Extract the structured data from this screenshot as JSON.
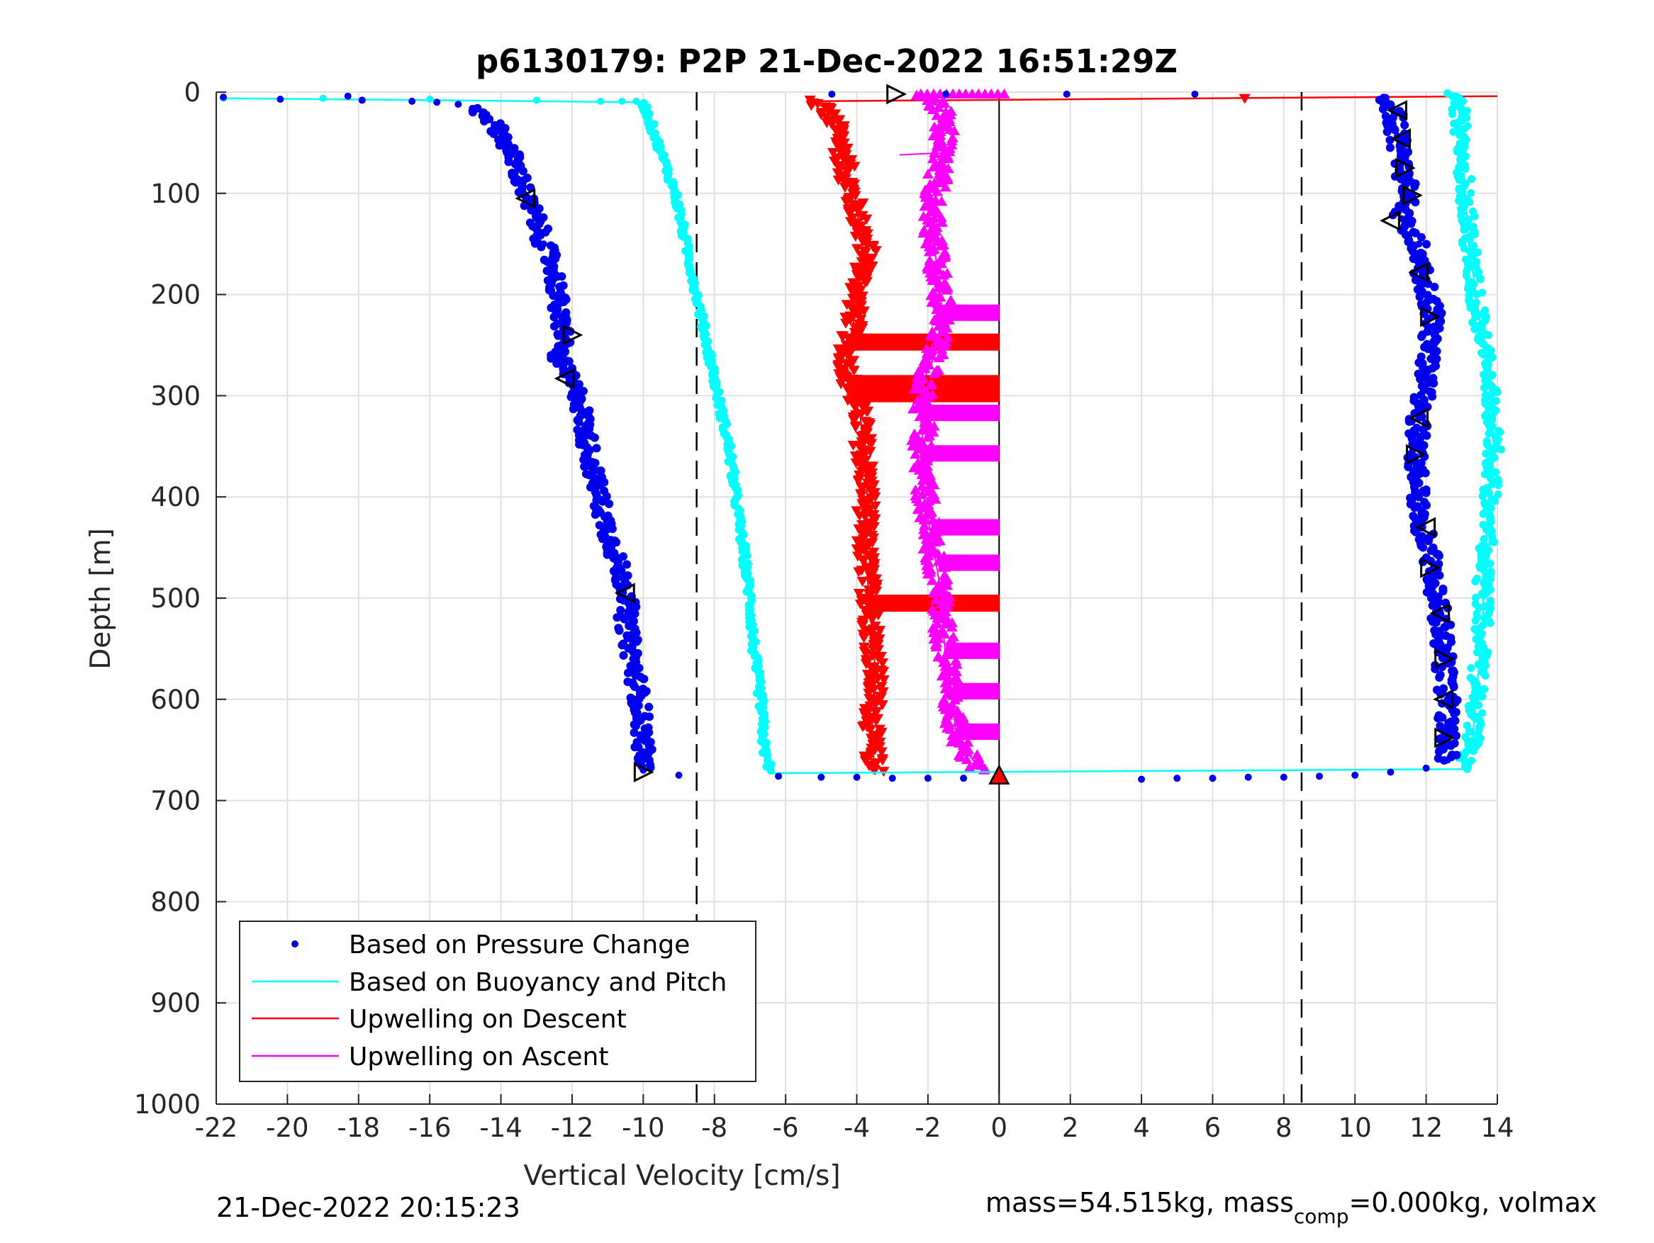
{
  "chart_data": {
    "type": "scatter",
    "title": "p6130179: P2P 21-Dec-2022 16:51:29Z",
    "xlabel": "Vertical Velocity [cm/s]",
    "ylabel": "Depth [m]",
    "xlim": [
      -22,
      14
    ],
    "ylim": [
      0,
      1000
    ],
    "y_reversed": true,
    "grid": true,
    "x_ticks": [
      -22,
      -20,
      -18,
      -16,
      -14,
      -12,
      -10,
      -8,
      -6,
      -4,
      -2,
      0,
      2,
      4,
      6,
      8,
      10,
      12,
      14
    ],
    "y_ticks": [
      0,
      100,
      200,
      300,
      400,
      500,
      600,
      700,
      800,
      900,
      1000
    ],
    "x_tick_labels": [
      "-22",
      "-20",
      "-18",
      "-16",
      "-14",
      "-12",
      "-10",
      "-8",
      "-6",
      "-4",
      "-2",
      "0",
      "2",
      "4",
      "6",
      "8",
      "10",
      "12",
      "14"
    ],
    "y_tick_labels": [
      "0",
      "100",
      "200",
      "300",
      "400",
      "500",
      "600",
      "700",
      "800",
      "900",
      "1000"
    ],
    "reference_lines": {
      "dashed_x": [
        -8.5,
        8.5
      ],
      "solid_x": [
        0
      ]
    },
    "legend": {
      "location": "bottom-left",
      "entries": [
        "Based on Pressure Change",
        "Based on Buoyancy and Pitch",
        "Upwelling on Descent",
        "Upwelling on Ascent"
      ]
    },
    "colors": {
      "pressure": "#0000ee",
      "buoyancy": "#00ffff",
      "descent": "#ff0000",
      "ascent": "#ff00ff",
      "grid": "#e0e0e0",
      "axis": "#262626"
    },
    "series": [
      {
        "name": "Based on Pressure Change",
        "marker": "dot",
        "descent_points": [
          [
            -21.8,
            5
          ],
          [
            -20.2,
            7
          ],
          [
            -18.3,
            4
          ],
          [
            -17.9,
            8
          ],
          [
            -16.5,
            9
          ],
          [
            -15.8,
            10
          ],
          [
            -15.2,
            12
          ],
          [
            -14.8,
            16
          ],
          [
            -14.4,
            22
          ],
          [
            -14.0,
            40
          ],
          [
            -13.6,
            70
          ],
          [
            -13.4,
            90
          ],
          [
            -13.3,
            105
          ],
          [
            -13.0,
            125
          ],
          [
            -12.8,
            150
          ],
          [
            -12.5,
            175
          ],
          [
            -12.4,
            200
          ],
          [
            -12.4,
            220
          ],
          [
            -12.2,
            240
          ],
          [
            -12.4,
            262
          ],
          [
            -12.1,
            282
          ],
          [
            -11.8,
            300
          ],
          [
            -11.6,
            340
          ],
          [
            -11.4,
            375
          ],
          [
            -11.1,
            420
          ],
          [
            -10.8,
            455
          ],
          [
            -10.6,
            480
          ],
          [
            -10.4,
            500
          ],
          [
            -10.5,
            520
          ],
          [
            -10.3,
            560
          ],
          [
            -10.1,
            600
          ],
          [
            -10.0,
            640
          ],
          [
            -10.0,
            670
          ],
          [
            -9.0,
            675
          ],
          [
            -6.2,
            676
          ],
          [
            -5.0,
            677
          ],
          [
            -4.0,
            677
          ],
          [
            -3.0,
            678
          ],
          [
            -2.0,
            678
          ],
          [
            -1.0,
            678
          ]
        ],
        "ascent_points": [
          [
            4.0,
            679
          ],
          [
            5.0,
            678
          ],
          [
            6.0,
            678
          ],
          [
            7.0,
            677
          ],
          [
            8.0,
            677
          ],
          [
            9.0,
            676
          ],
          [
            10.0,
            675
          ],
          [
            11.0,
            672
          ],
          [
            12.0,
            668
          ],
          [
            12.6,
            660
          ],
          [
            12.6,
            640
          ],
          [
            12.6,
            600
          ],
          [
            12.5,
            560
          ],
          [
            12.4,
            520
          ],
          [
            12.2,
            470
          ],
          [
            11.9,
            430
          ],
          [
            11.8,
            400
          ],
          [
            11.7,
            360
          ],
          [
            11.8,
            320
          ],
          [
            12.0,
            280
          ],
          [
            12.2,
            220
          ],
          [
            11.9,
            180
          ],
          [
            11.8,
            150
          ],
          [
            11.3,
            125
          ],
          [
            11.5,
            100
          ],
          [
            11.3,
            70
          ],
          [
            11.2,
            45
          ],
          [
            11.1,
            20
          ],
          [
            10.8,
            5
          ],
          [
            5.5,
            2
          ],
          [
            1.9,
            2
          ],
          [
            -1.5,
            2
          ],
          [
            -4.7,
            2
          ]
        ]
      },
      {
        "name": "Based on Buoyancy and Pitch",
        "marker": "line+dot",
        "points": [
          [
            -21.8,
            6
          ],
          [
            -10.0,
            10
          ],
          [
            -9.8,
            30
          ],
          [
            -9.5,
            60
          ],
          [
            -9.1,
            100
          ],
          [
            -8.8,
            150
          ],
          [
            -8.5,
            200
          ],
          [
            -8.2,
            250
          ],
          [
            -7.9,
            300
          ],
          [
            -7.6,
            350
          ],
          [
            -7.4,
            400
          ],
          [
            -7.2,
            450
          ],
          [
            -7.0,
            500
          ],
          [
            -6.9,
            550
          ],
          [
            -6.7,
            600
          ],
          [
            -6.6,
            650
          ],
          [
            -6.4,
            673
          ],
          [
            13.0,
            669
          ],
          [
            13.3,
            640
          ],
          [
            13.4,
            600
          ],
          [
            13.5,
            560
          ],
          [
            13.6,
            520
          ],
          [
            13.6,
            480
          ],
          [
            13.7,
            440
          ],
          [
            13.8,
            400
          ],
          [
            13.9,
            350
          ],
          [
            13.8,
            300
          ],
          [
            13.6,
            250
          ],
          [
            13.4,
            200
          ],
          [
            13.2,
            150
          ],
          [
            13.1,
            100
          ],
          [
            13.0,
            50
          ],
          [
            12.9,
            10
          ],
          [
            12.7,
            0
          ]
        ]
      },
      {
        "name": "Upwelling on Descent",
        "marker": "triangle-down",
        "points": [
          [
            -5.4,
            8
          ],
          [
            -4.9,
            15
          ],
          [
            -4.5,
            40
          ],
          [
            -4.3,
            80
          ],
          [
            -4.0,
            120
          ],
          [
            -3.7,
            160
          ],
          [
            -4.0,
            200
          ],
          [
            -4.1,
            230
          ],
          [
            -4.3,
            260
          ],
          [
            -4.2,
            290
          ],
          [
            -3.9,
            320
          ],
          [
            -3.8,
            360
          ],
          [
            -3.7,
            400
          ],
          [
            -3.8,
            440
          ],
          [
            -3.7,
            480
          ],
          [
            -3.6,
            520
          ],
          [
            -3.5,
            560
          ],
          [
            -3.5,
            600
          ],
          [
            -3.6,
            640
          ],
          [
            -3.5,
            665
          ],
          [
            -3.2,
            672
          ]
        ],
        "spikes_to_zero_at_depth": [
          247,
          288,
          298,
          505
        ],
        "surface_spike": {
          "x_end": 14,
          "depth": 4
        }
      },
      {
        "name": "Upwelling on Ascent",
        "marker": "triangle-up",
        "points": [
          [
            -0.5,
            670
          ],
          [
            -1.2,
            640
          ],
          [
            -1.3,
            600
          ],
          [
            -1.5,
            560
          ],
          [
            -1.6,
            520
          ],
          [
            -1.7,
            480
          ],
          [
            -1.9,
            440
          ],
          [
            -2.1,
            400
          ],
          [
            -2.2,
            360
          ],
          [
            -2.1,
            320
          ],
          [
            -2.2,
            290
          ],
          [
            -1.8,
            260
          ],
          [
            -1.6,
            220
          ],
          [
            -1.7,
            180
          ],
          [
            -1.9,
            140
          ],
          [
            -1.8,
            100
          ],
          [
            -1.6,
            60
          ],
          [
            -1.5,
            20
          ],
          [
            -2.2,
            2
          ]
        ],
        "spikes_to_zero_at_depth": [
          218,
          317,
          357,
          430,
          465,
          552,
          592,
          632
        ]
      }
    ],
    "open_triangle_markers": [
      [
        -13.3,
        105,
        "left"
      ],
      [
        -12.0,
        240,
        "right"
      ],
      [
        -12.2,
        283,
        "left"
      ],
      [
        -10.5,
        495,
        "left"
      ],
      [
        -10.0,
        672,
        "right"
      ],
      [
        -2.9,
        2,
        "right"
      ],
      [
        11.2,
        18,
        "left"
      ],
      [
        11.3,
        46,
        "left"
      ],
      [
        11.4,
        75,
        "right"
      ],
      [
        11.6,
        102,
        "right"
      ],
      [
        11.0,
        127,
        "left"
      ],
      [
        11.8,
        178,
        "left"
      ],
      [
        12.1,
        222,
        "right"
      ],
      [
        11.8,
        322,
        "left"
      ],
      [
        11.7,
        358,
        "right"
      ],
      [
        12.0,
        430,
        "left"
      ],
      [
        12.1,
        470,
        "right"
      ],
      [
        12.4,
        515,
        "left"
      ],
      [
        12.5,
        560,
        "right"
      ],
      [
        12.5,
        600,
        "left"
      ],
      [
        12.5,
        638,
        "right"
      ]
    ],
    "red_filled_marker": [
      0,
      676
    ]
  },
  "footer": {
    "timestamp": "21-Dec-2022 20:15:23",
    "mass_prefix": "mass=54.515kg, mass",
    "mass_subscript": "comp",
    "mass_suffix": "=0.000kg, volmax"
  }
}
